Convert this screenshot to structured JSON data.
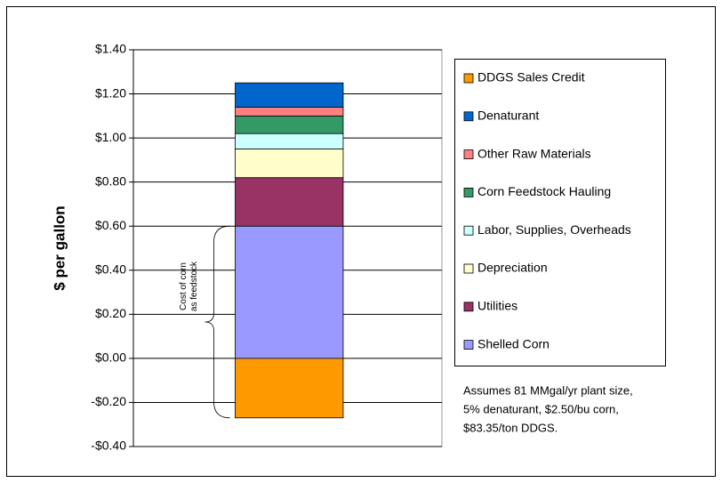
{
  "chart_data": {
    "type": "stacked-bar",
    "y_label": "$ per gallon",
    "categories": [
      null
    ],
    "series": [
      {
        "name": "DDGS Sales Credit",
        "color": "#ff9900",
        "values": [
          -0.27
        ]
      },
      {
        "name": "Denaturant",
        "color": "#0066cc",
        "values": [
          0.11
        ]
      },
      {
        "name": "Other Raw Materials",
        "color": "#ff8080",
        "values": [
          0.04
        ]
      },
      {
        "name": "Corn Feedstock Hauling",
        "color": "#339966",
        "values": [
          0.08
        ]
      },
      {
        "name": "Labor, Supplies, Overheads",
        "color": "#ccffff",
        "values": [
          0.07
        ]
      },
      {
        "name": "Depreciation",
        "color": "#ffffcc",
        "values": [
          0.13
        ]
      },
      {
        "name": "Utilities",
        "color": "#993366",
        "values": [
          0.22
        ]
      },
      {
        "name": "Shelled Corn",
        "color": "#9999ff",
        "values": [
          0.6
        ]
      }
    ],
    "ylim": [
      -0.4,
      1.4
    ],
    "yticks": [
      {
        "value": -0.4,
        "label": "-$0.40"
      },
      {
        "value": -0.2,
        "label": "-$0.20"
      },
      {
        "value": 0,
        "label": "$0.00"
      },
      {
        "value": 0.2,
        "label": "$0.20"
      },
      {
        "value": 0.4,
        "label": "$0.40"
      },
      {
        "value": 0.6,
        "label": "$0.60"
      },
      {
        "value": 0.8,
        "label": "$0.80"
      },
      {
        "value": 1.0,
        "label": "$1.00"
      },
      {
        "value": 1.2,
        "label": "$1.20"
      },
      {
        "value": 1.4,
        "label": "$1.40"
      }
    ],
    "grid": true,
    "annotation": [
      "Cost of corn",
      "as feedstock"
    ],
    "note": [
      "Assumes 81 MMgal/yr plant size,",
      "5% denaturant, $2.50/bu corn,",
      "$83.35/ton DDGS."
    ]
  }
}
